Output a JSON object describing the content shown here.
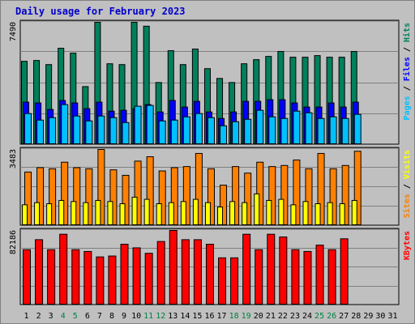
{
  "title": "Daily usage for February 2023",
  "colors": {
    "hits": "#00805C",
    "files": "#0000FF",
    "pages": "#00C0FF",
    "visits": "#FFFF00",
    "sites": "#FF8000",
    "kbytes": "#FF0000",
    "weekend_label": "#008040",
    "background": "#C0C0C0",
    "title": "#0000CC"
  },
  "legend": {
    "top": [
      {
        "label": "Hits",
        "color": "#00805C"
      },
      {
        "label": "Files",
        "color": "#0000FF"
      },
      {
        "label": "Pages",
        "color": "#00C0FF"
      }
    ],
    "middle": [
      {
        "label": "Visits",
        "color": "#FFFF00"
      },
      {
        "label": "Sites",
        "color": "#FF8000"
      }
    ],
    "bottom": [
      {
        "label": "KBytes",
        "color": "#FF0000"
      }
    ]
  },
  "chart_data": [
    {
      "type": "bar",
      "title": "Daily usage for February 2023",
      "ymax_label": "7490",
      "ylim": [
        0,
        7490
      ],
      "categories": [
        "1",
        "2",
        "3",
        "4",
        "5",
        "6",
        "7",
        "8",
        "9",
        "10",
        "11",
        "12",
        "13",
        "14",
        "15",
        "16",
        "17",
        "18",
        "19",
        "20",
        "21",
        "22",
        "23",
        "24",
        "25",
        "26",
        "27",
        "28",
        "29",
        "30",
        "31"
      ],
      "weekend_days": [
        "4",
        "5",
        "11",
        "12",
        "18",
        "19",
        "25",
        "26"
      ],
      "series": [
        {
          "name": "Hits",
          "values": [
            5100,
            5150,
            4900,
            5900,
            5600,
            3550,
            7490,
            4950,
            4900,
            7490,
            7250,
            3800,
            5750,
            4900,
            5850,
            4650,
            4050,
            3800,
            4950,
            5200,
            5400,
            5700,
            5350,
            5350,
            5450,
            5350,
            5350,
            5700,
            0,
            0,
            0
          ]
        },
        {
          "name": "Files",
          "values": [
            2600,
            2550,
            2150,
            2700,
            2550,
            2200,
            2600,
            2050,
            2100,
            2200,
            2450,
            2000,
            2700,
            2300,
            2650,
            2000,
            1600,
            2000,
            2650,
            2650,
            2750,
            2750,
            2550,
            2300,
            2300,
            2550,
            2300,
            2600,
            0,
            0,
            0
          ]
        },
        {
          "name": "Pages",
          "values": [
            1900,
            1500,
            1650,
            2450,
            1750,
            1450,
            1750,
            1650,
            1350,
            2350,
            2400,
            1450,
            1500,
            1700,
            1900,
            1650,
            1150,
            1400,
            1550,
            2100,
            1700,
            1600,
            2050,
            1950,
            1600,
            1700,
            1600,
            1850,
            0,
            0,
            0
          ]
        }
      ]
    },
    {
      "type": "bar",
      "ymax_label": "3483",
      "ylim": [
        0,
        3483
      ],
      "categories": [
        "1",
        "2",
        "3",
        "4",
        "5",
        "6",
        "7",
        "8",
        "9",
        "10",
        "11",
        "12",
        "13",
        "14",
        "15",
        "16",
        "17",
        "18",
        "19",
        "20",
        "21",
        "22",
        "23",
        "24",
        "25",
        "26",
        "27",
        "28",
        "29",
        "30",
        "31"
      ],
      "series": [
        {
          "name": "Sites",
          "values": [
            2450,
            2650,
            2600,
            2900,
            2650,
            2600,
            3483,
            2550,
            2300,
            2950,
            3150,
            2500,
            2650,
            2700,
            3300,
            2600,
            1850,
            2700,
            2400,
            2900,
            2700,
            2750,
            3000,
            2600,
            3300,
            2600,
            2750,
            3400,
            0,
            0,
            0
          ]
        },
        {
          "name": "Visits",
          "values": [
            950,
            1050,
            1000,
            1150,
            1100,
            1050,
            1150,
            1100,
            1000,
            1300,
            1200,
            1000,
            1050,
            1100,
            1200,
            1050,
            850,
            1100,
            1050,
            1450,
            1150,
            1200,
            950,
            1100,
            1000,
            1050,
            1000,
            1150,
            0,
            0,
            0
          ]
        }
      ]
    },
    {
      "type": "bar",
      "ymax_label": "82186",
      "ylim": [
        0,
        82186
      ],
      "categories": [
        "1",
        "2",
        "3",
        "4",
        "5",
        "6",
        "7",
        "8",
        "9",
        "10",
        "11",
        "12",
        "13",
        "14",
        "15",
        "16",
        "17",
        "18",
        "19",
        "20",
        "21",
        "22",
        "23",
        "24",
        "25",
        "26",
        "27",
        "28",
        "29",
        "30",
        "31"
      ],
      "series": [
        {
          "name": "KBytes",
          "values": [
            61000,
            72000,
            61000,
            78000,
            61000,
            59000,
            53000,
            54000,
            67000,
            63000,
            57000,
            70000,
            82186,
            72000,
            72000,
            67000,
            52000,
            52000,
            78000,
            61000,
            78000,
            75000,
            61000,
            59000,
            66000,
            61000,
            73000,
            0,
            0,
            0,
            0
          ]
        }
      ]
    }
  ]
}
